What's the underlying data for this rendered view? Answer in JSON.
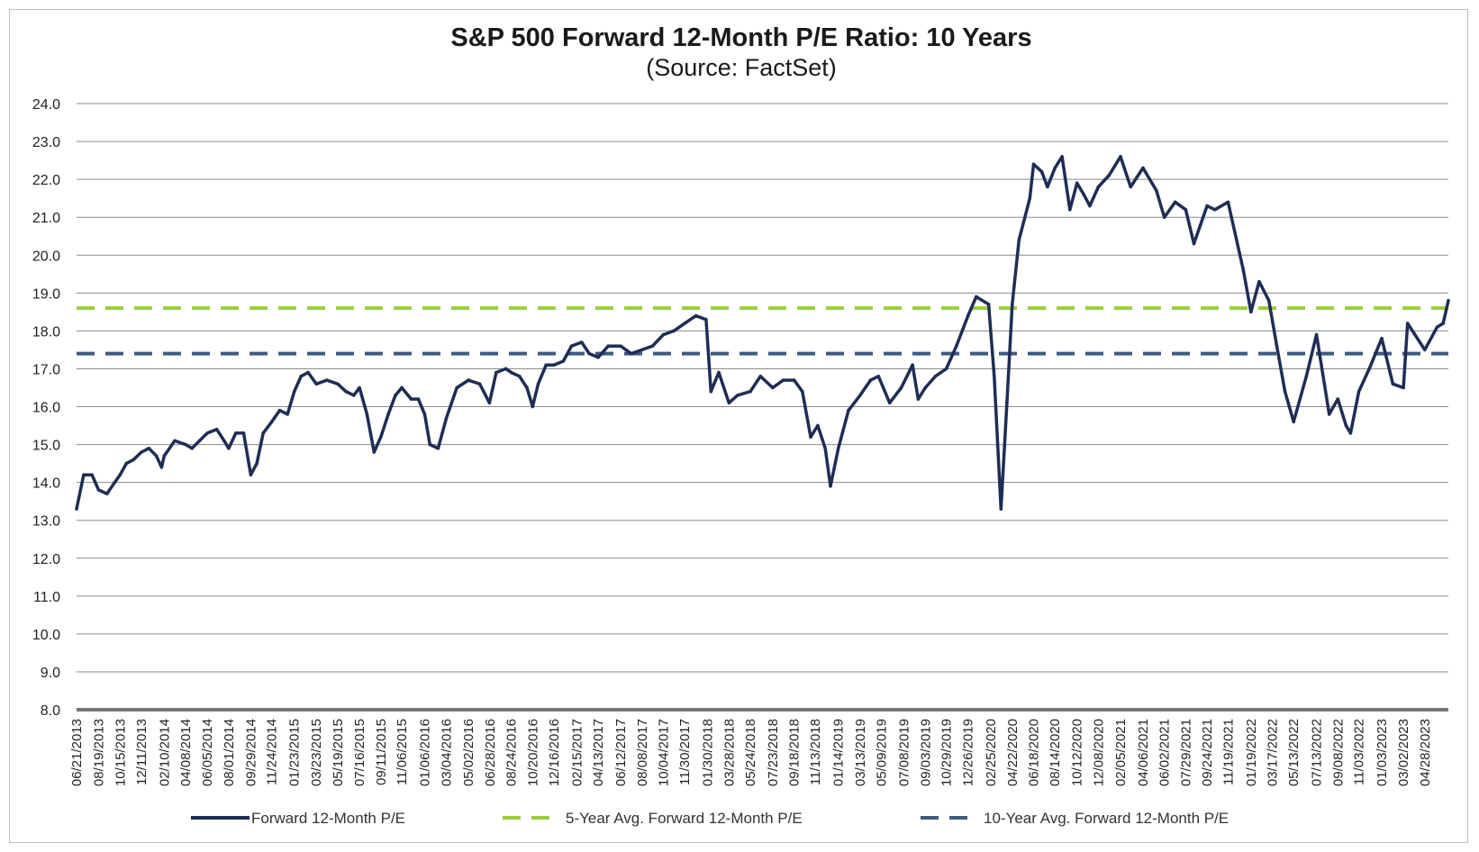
{
  "chart_data": {
    "type": "line",
    "title": "S&P 500 Forward 12-Month P/E Ratio: 10 Years",
    "subtitle": "(Source: FactSet)",
    "ylim": [
      8.0,
      24.0
    ],
    "yticks": [
      "8.0",
      "9.0",
      "10.0",
      "11.0",
      "12.0",
      "13.0",
      "14.0",
      "15.0",
      "16.0",
      "17.0",
      "18.0",
      "19.0",
      "20.0",
      "21.0",
      "22.0",
      "23.0",
      "24.0"
    ],
    "grid": true,
    "legend_position": "bottom",
    "xticks": [
      "06/21/2013",
      "08/19/2013",
      "10/15/2013",
      "12/11/2013",
      "02/10/2014",
      "04/08/2014",
      "06/05/2014",
      "08/01/2014",
      "09/29/2014",
      "11/24/2014",
      "01/23/2015",
      "03/23/2015",
      "05/19/2015",
      "07/16/2015",
      "09/11/2015",
      "11/06/2015",
      "01/06/2016",
      "03/04/2016",
      "05/02/2016",
      "06/28/2016",
      "08/24/2016",
      "10/20/2016",
      "12/16/2016",
      "02/15/2017",
      "04/13/2017",
      "06/12/2017",
      "08/08/2017",
      "10/04/2017",
      "11/30/2017",
      "01/30/2018",
      "03/28/2018",
      "05/24/2018",
      "07/23/2018",
      "09/18/2018",
      "11/13/2018",
      "01/14/2019",
      "03/13/2019",
      "05/09/2019",
      "07/08/2019",
      "09/03/2019",
      "10/29/2019",
      "12/26/2019",
      "02/25/2020",
      "04/22/2020",
      "06/18/2020",
      "08/14/2020",
      "10/12/2020",
      "12/08/2020",
      "02/05/2021",
      "04/06/2021",
      "06/02/2021",
      "07/29/2021",
      "09/24/2021",
      "11/19/2021",
      "01/19/2022",
      "03/17/2022",
      "05/13/2022",
      "07/13/2022",
      "09/08/2022",
      "11/03/2022",
      "01/03/2023",
      "03/02/2023",
      "04/28/2023"
    ],
    "series": [
      {
        "name": "Forward 12-Month P/E",
        "color": "#1f2d55",
        "style": "solid",
        "x": [
          "06/21/2013",
          "07/10/2013",
          "08/01/2013",
          "08/19/2013",
          "09/10/2013",
          "10/01/2013",
          "10/15/2013",
          "11/01/2013",
          "11/20/2013",
          "12/11/2013",
          "12/31/2013",
          "01/20/2014",
          "02/03/2014",
          "02/10/2014",
          "03/10/2014",
          "04/08/2014",
          "04/25/2014",
          "05/15/2014",
          "06/05/2014",
          "06/30/2014",
          "07/20/2014",
          "08/01/2014",
          "08/20/2014",
          "09/10/2014",
          "09/29/2014",
          "10/15/2014",
          "11/01/2014",
          "11/24/2014",
          "12/15/2014",
          "01/05/2015",
          "01/23/2015",
          "02/10/2015",
          "03/01/2015",
          "03/23/2015",
          "04/20/2015",
          "05/19/2015",
          "06/10/2015",
          "07/01/2015",
          "07/16/2015",
          "08/05/2015",
          "08/24/2015",
          "09/11/2015",
          "10/01/2015",
          "10/20/2015",
          "11/06/2015",
          "12/01/2015",
          "12/20/2015",
          "01/06/2016",
          "01/20/2016",
          "02/11/2016",
          "03/04/2016",
          "04/01/2016",
          "05/02/2016",
          "06/01/2016",
          "06/27/2016",
          "07/15/2016",
          "08/10/2016",
          "08/24/2016",
          "09/15/2016",
          "10/05/2016",
          "10/20/2016",
          "11/04/2016",
          "11/25/2016",
          "12/16/2016",
          "01/10/2017",
          "02/01/2017",
          "02/28/2017",
          "03/20/2017",
          "04/13/2017",
          "05/10/2017",
          "06/12/2017",
          "07/10/2017",
          "08/08/2017",
          "09/05/2017",
          "10/04/2017",
          "11/01/2017",
          "11/30/2017",
          "12/30/2017",
          "01/26/2018",
          "02/08/2018",
          "03/01/2018",
          "03/28/2018",
          "04/20/2018",
          "05/24/2018",
          "06/20/2018",
          "07/23/2018",
          "08/20/2018",
          "09/18/2018",
          "10/10/2018",
          "11/01/2018",
          "11/20/2018",
          "12/10/2018",
          "12/24/2018",
          "01/14/2019",
          "02/10/2019",
          "03/13/2019",
          "04/10/2019",
          "05/01/2019",
          "05/31/2019",
          "07/01/2019",
          "07/31/2019",
          "08/15/2019",
          "09/03/2019",
          "09/30/2019",
          "10/29/2019",
          "11/25/2019",
          "12/26/2019",
          "01/17/2020",
          "02/19/2020",
          "03/05/2020",
          "03/23/2020",
          "04/08/2020",
          "04/22/2020",
          "05/10/2020",
          "06/08/2020",
          "06/18/2020",
          "07/10/2020",
          "07/25/2020",
          "08/14/2020",
          "09/02/2020",
          "09/23/2020",
          "10/12/2020",
          "10/30/2020",
          "11/15/2020",
          "12/08/2020",
          "01/05/2021",
          "02/05/2021",
          "03/04/2021",
          "04/06/2021",
          "05/12/2021",
          "06/02/2021",
          "07/01/2021",
          "07/29/2021",
          "08/20/2021",
          "09/24/2021",
          "10/15/2021",
          "11/19/2021",
          "12/30/2021",
          "01/19/2022",
          "02/10/2022",
          "03/08/2022",
          "03/29/2022",
          "04/20/2022",
          "05/13/2022",
          "06/16/2022",
          "07/13/2022",
          "08/16/2022",
          "09/08/2022",
          "09/30/2022",
          "10/12/2022",
          "11/03/2022",
          "12/01/2022",
          "01/03/2023",
          "02/02/2023",
          "03/02/2023",
          "03/13/2023",
          "04/28/2023",
          "05/31/2023",
          "06/16/2023",
          "06/30/2023"
        ],
        "values": [
          13.3,
          14.2,
          14.2,
          13.8,
          13.7,
          14.0,
          14.2,
          14.5,
          14.6,
          14.8,
          14.9,
          14.7,
          14.4,
          14.7,
          15.1,
          15.0,
          14.9,
          15.1,
          15.3,
          15.4,
          15.1,
          14.9,
          15.3,
          15.3,
          14.2,
          14.5,
          15.3,
          15.6,
          15.9,
          15.8,
          16.4,
          16.8,
          16.9,
          16.6,
          16.7,
          16.6,
          16.4,
          16.3,
          16.5,
          15.8,
          14.8,
          15.2,
          15.8,
          16.3,
          16.5,
          16.2,
          16.2,
          15.8,
          15.0,
          14.9,
          15.7,
          16.5,
          16.7,
          16.6,
          16.1,
          16.9,
          17.0,
          16.9,
          16.8,
          16.5,
          16.0,
          16.6,
          17.1,
          17.1,
          17.2,
          17.6,
          17.7,
          17.4,
          17.3,
          17.6,
          17.6,
          17.4,
          17.5,
          17.6,
          17.9,
          18.0,
          18.2,
          18.4,
          18.3,
          16.4,
          16.9,
          16.1,
          16.3,
          16.4,
          16.8,
          16.5,
          16.7,
          16.7,
          16.4,
          15.2,
          15.5,
          14.9,
          13.9,
          14.9,
          15.9,
          16.3,
          16.7,
          16.8,
          16.1,
          16.5,
          17.1,
          16.2,
          16.5,
          16.8,
          17.0,
          17.6,
          18.4,
          18.9,
          18.7,
          16.8,
          13.3,
          16.1,
          18.7,
          20.4,
          21.5,
          22.4,
          22.2,
          21.8,
          22.3,
          22.6,
          21.2,
          21.9,
          21.6,
          21.3,
          21.8,
          22.1,
          22.6,
          21.8,
          22.3,
          21.7,
          21.0,
          21.4,
          21.2,
          20.3,
          21.3,
          21.2,
          21.4,
          19.6,
          18.5,
          19.3,
          18.8,
          17.6,
          16.4,
          15.6,
          16.8,
          17.9,
          15.8,
          16.2,
          15.5,
          15.3,
          16.4,
          17.0,
          17.8,
          16.6,
          16.5,
          18.2,
          17.5,
          18.1,
          18.2,
          18.8
        ]
      },
      {
        "name": "5-Year Avg. Forward 12-Month P/E",
        "color": "#9acd3c",
        "style": "dashed",
        "value": 18.6
      },
      {
        "name": "10-Year Avg. Forward 12-Month P/E",
        "color": "#405a80",
        "style": "dashed",
        "value": 17.4
      }
    ]
  }
}
